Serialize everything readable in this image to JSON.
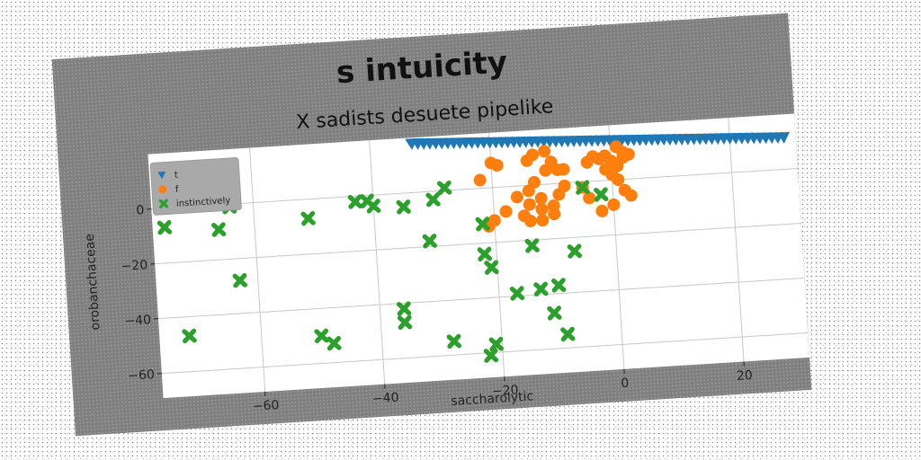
{
  "chart_data": {
    "type": "scatter",
    "title": "s intuicity",
    "subtitle": "X sadists desuete pipelike",
    "xlabel": "saccharolytic",
    "ylabel": "orobanchaceae",
    "xlim": [
      -77,
      31
    ],
    "ylim": [
      -69,
      20
    ],
    "xticks": [
      -60,
      -40,
      -20,
      0,
      20
    ],
    "yticks": [
      0,
      -20,
      -40,
      -60
    ],
    "grid": true,
    "legend": "top-left",
    "series": [
      {
        "name": "t",
        "marker": "triangle-down",
        "color": "#1f77b4",
        "points": [
          [
            -33,
            17.8
          ],
          [
            -32,
            17.7
          ],
          [
            -31,
            17.6
          ],
          [
            -30,
            17.5
          ],
          [
            -29,
            17.4
          ],
          [
            -28,
            17.3
          ],
          [
            -27,
            17.2
          ],
          [
            -26,
            17.1
          ],
          [
            -25,
            17.0
          ],
          [
            -24,
            16.9
          ],
          [
            -23,
            16.8
          ],
          [
            -22,
            16.7
          ],
          [
            -21,
            16.6
          ],
          [
            -20,
            16.5
          ],
          [
            -19,
            16.4
          ],
          [
            -18,
            16.3
          ],
          [
            -17,
            16.2
          ],
          [
            -16,
            16.1
          ],
          [
            -15,
            16.0
          ],
          [
            -14,
            15.9
          ],
          [
            -13,
            15.8
          ],
          [
            -12,
            15.7
          ],
          [
            -11,
            15.6
          ],
          [
            -10,
            15.5
          ],
          [
            -9,
            15.4
          ],
          [
            -8,
            15.3
          ],
          [
            -7,
            15.2
          ],
          [
            -6,
            15.1
          ],
          [
            -5,
            15.0
          ],
          [
            -4,
            14.9
          ],
          [
            -3,
            14.8
          ],
          [
            -2,
            14.7
          ],
          [
            -1,
            14.6
          ],
          [
            0,
            14.5
          ],
          [
            1,
            14.4
          ],
          [
            2,
            14.3
          ],
          [
            3,
            14.2
          ],
          [
            4,
            14.1
          ],
          [
            5,
            14.0
          ],
          [
            6,
            13.9
          ],
          [
            7,
            13.8
          ],
          [
            8,
            13.7
          ],
          [
            9,
            13.6
          ],
          [
            10,
            13.5
          ],
          [
            11,
            13.4
          ],
          [
            12,
            13.3
          ],
          [
            13,
            13.2
          ],
          [
            14,
            13.1
          ],
          [
            15,
            13.0
          ],
          [
            16,
            12.9
          ],
          [
            17,
            12.8
          ],
          [
            18,
            12.7
          ],
          [
            19,
            12.6
          ],
          [
            20,
            12.5
          ],
          [
            21,
            12.4
          ],
          [
            22,
            12.3
          ],
          [
            23,
            12.2
          ],
          [
            24,
            12.1
          ],
          [
            25,
            12.0
          ],
          [
            26,
            11.9
          ],
          [
            27,
            11.8
          ],
          [
            28,
            11.7
          ],
          [
            29,
            11.6
          ]
        ]
      },
      {
        "name": "f",
        "marker": "circle",
        "color": "#ff7f0e",
        "points": [
          [
            -22,
            3
          ],
          [
            -20,
            9
          ],
          [
            -19,
            8
          ],
          [
            -14,
            9
          ],
          [
            -13,
            11
          ],
          [
            -11,
            12
          ],
          [
            -10,
            8
          ],
          [
            -11,
            5
          ],
          [
            -9,
            5
          ],
          [
            -8,
            5
          ],
          [
            -4,
            7
          ],
          [
            -3,
            9
          ],
          [
            -2,
            8
          ],
          [
            -1,
            9
          ],
          [
            0,
            7
          ],
          [
            1,
            12
          ],
          [
            2,
            10
          ],
          [
            2,
            8
          ],
          [
            3,
            9
          ],
          [
            1,
            5
          ],
          [
            -1,
            4
          ],
          [
            0,
            2
          ],
          [
            1,
            0
          ],
          [
            2,
            -4
          ],
          [
            3,
            -6
          ],
          [
            0,
            -9
          ],
          [
            -2,
            -11
          ],
          [
            -4,
            -6
          ],
          [
            -5,
            -2
          ],
          [
            -8,
            -1
          ],
          [
            -9,
            -4
          ],
          [
            -12,
            -5
          ],
          [
            -14,
            -7
          ],
          [
            -15,
            -11
          ],
          [
            -14,
            -13
          ],
          [
            -12,
            -13
          ],
          [
            -10,
            -11
          ],
          [
            -12,
            -9
          ],
          [
            -10,
            -8
          ],
          [
            -18,
            -9
          ],
          [
            -20,
            -12
          ],
          [
            -21,
            -14
          ],
          [
            -16,
            -4
          ],
          [
            -14,
            -2
          ],
          [
            -13,
            1
          ]
        ]
      },
      {
        "name": "instinctively",
        "marker": "x",
        "color": "#2ca02c",
        "points": [
          [
            -75,
            -7
          ],
          [
            -66,
            -9
          ],
          [
            -64,
            -1
          ],
          [
            -63,
            -28
          ],
          [
            -72,
            -47
          ],
          [
            -51,
            -7
          ],
          [
            -50,
            -50
          ],
          [
            -48,
            -53
          ],
          [
            -43,
            -2
          ],
          [
            -41,
            -2
          ],
          [
            -40,
            -4
          ],
          [
            -35,
            -5
          ],
          [
            -36,
            -42
          ],
          [
            -36,
            -47
          ],
          [
            -30,
            -3
          ],
          [
            -28,
            1
          ],
          [
            -31,
            -18
          ],
          [
            -28,
            -55
          ],
          [
            -22,
            -13
          ],
          [
            -22,
            -24
          ],
          [
            -21,
            -29
          ],
          [
            -21,
            -57
          ],
          [
            -22,
            -61
          ],
          [
            -17,
            -39
          ],
          [
            -14,
            -22
          ],
          [
            -13,
            -38
          ],
          [
            -11,
            -47
          ],
          [
            -10,
            -37
          ],
          [
            -9,
            -55
          ],
          [
            -7,
            -25
          ],
          [
            -5,
            -2
          ],
          [
            -2,
            -5
          ]
        ]
      }
    ]
  }
}
